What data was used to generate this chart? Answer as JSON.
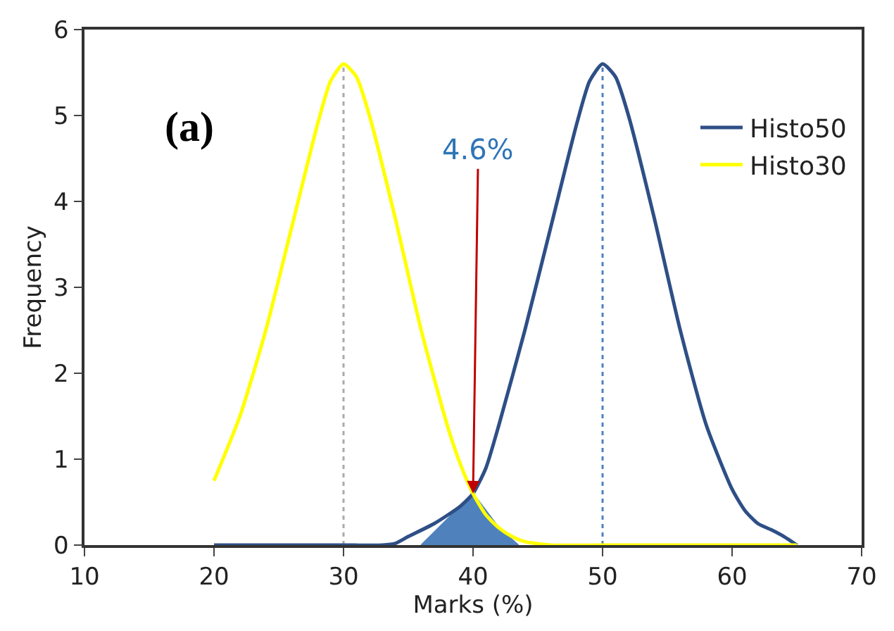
{
  "chart_data": {
    "type": "line",
    "xlabel": "Marks (%)",
    "ylabel": "Frequency",
    "xlim": [
      10,
      70
    ],
    "xticks": [
      10,
      20,
      30,
      40,
      50,
      60,
      70
    ],
    "ylim": [
      0,
      6
    ],
    "yticks": [
      0,
      1,
      2,
      3,
      4,
      5,
      6
    ],
    "grid": false,
    "legend": "top right",
    "marker": "none",
    "line_style": "solid",
    "series": [
      {
        "type": "area",
        "color": "#4f81bd",
        "x": [
          36,
          37,
          38,
          39,
          40,
          41,
          42,
          43.5
        ],
        "values": [
          0,
          0.15,
          0.3,
          0.45,
          0.6,
          0.4,
          0.2,
          0
        ]
      },
      {
        "name": "Histo50",
        "color": "#2e4f86",
        "x": [
          20,
          25,
          30,
          33,
          34,
          35,
          37,
          39,
          40,
          41,
          42,
          44,
          46,
          48,
          49,
          50,
          51,
          52,
          54,
          56,
          58,
          60,
          61,
          62,
          63,
          64,
          65
        ],
        "values": [
          0,
          0,
          0,
          0,
          0.02,
          0.1,
          0.25,
          0.45,
          0.6,
          0.9,
          1.4,
          2.5,
          3.7,
          4.9,
          5.4,
          5.6,
          5.45,
          5.0,
          3.8,
          2.5,
          1.4,
          0.65,
          0.4,
          0.25,
          0.18,
          0.1,
          0
        ]
      },
      {
        "name": "Histo30",
        "color": "#ffff00",
        "x": [
          20,
          22,
          24,
          26,
          28,
          29,
          30,
          31,
          32,
          34,
          36,
          38,
          39,
          40,
          41,
          42,
          43,
          44,
          46,
          50,
          55,
          60,
          65
        ],
        "values": [
          0.75,
          1.5,
          2.5,
          3.7,
          4.9,
          5.4,
          5.6,
          5.45,
          5.0,
          3.8,
          2.5,
          1.4,
          0.95,
          0.6,
          0.35,
          0.2,
          0.1,
          0.04,
          0,
          0,
          0,
          0,
          0
        ]
      }
    ],
    "ref_lines": [
      {
        "axis": "x",
        "value": 30,
        "color": "#aaaaaa",
        "line_style": "dotted"
      },
      {
        "axis": "x",
        "value": 50,
        "color": "#4f81bd",
        "line_style": "dotted"
      }
    ],
    "annotations": [
      "(a)",
      {
        "text": "4.6%",
        "x": 40,
        "y": 0.6
      }
    ]
  }
}
